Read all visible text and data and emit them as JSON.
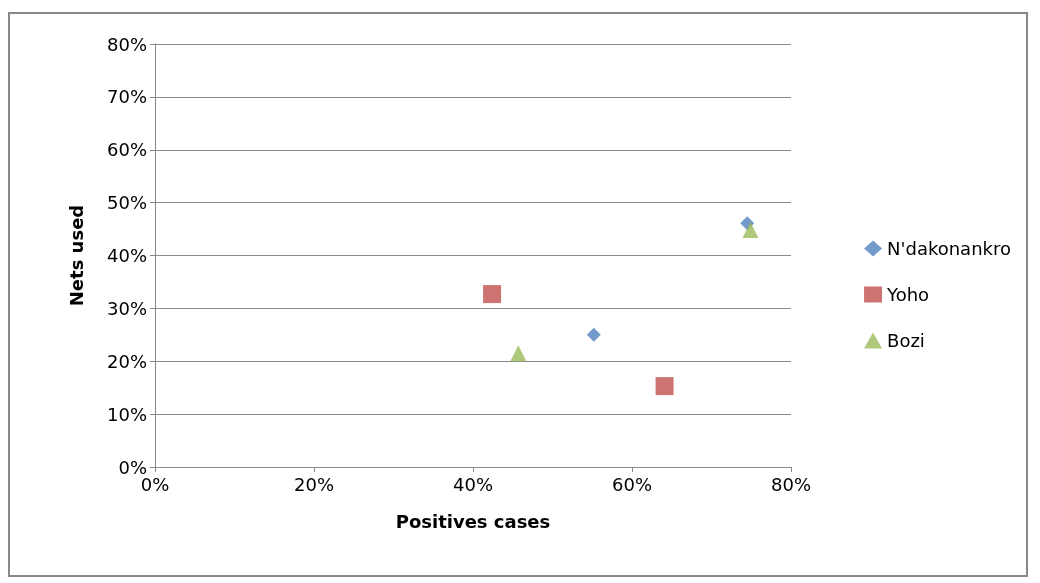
{
  "chart_data": {
    "type": "scatter",
    "xlabel": "Positives cases",
    "ylabel": "Nets used",
    "xlim": [
      0,
      80
    ],
    "ylim": [
      0,
      80
    ],
    "xticks": [
      {
        "value": 0,
        "label": "0%"
      },
      {
        "value": 20,
        "label": "20%"
      },
      {
        "value": 40,
        "label": "40%"
      },
      {
        "value": 60,
        "label": "60%"
      },
      {
        "value": 80,
        "label": "80%"
      }
    ],
    "yticks": [
      {
        "value": 0,
        "label": "0%"
      },
      {
        "value": 10,
        "label": "10%"
      },
      {
        "value": 20,
        "label": "20%"
      },
      {
        "value": 30,
        "label": "30%"
      },
      {
        "value": 40,
        "label": "40%"
      },
      {
        "value": 50,
        "label": "50%"
      },
      {
        "value": 60,
        "label": "60%"
      },
      {
        "value": 70,
        "label": "70%"
      },
      {
        "value": 80,
        "label": "80%"
      }
    ],
    "grid": "y",
    "legend": "right",
    "series": [
      {
        "name": "N'dakonankro",
        "color": "#4f81bd",
        "marker": "diamond",
        "x": [
          74.5,
          55.2
        ],
        "values": [
          46.1,
          25.0
        ]
      },
      {
        "name": "Yoho",
        "color": "#c0504d",
        "marker": "square",
        "x": [
          42.4,
          64.1
        ],
        "values": [
          32.7,
          15.3
        ]
      },
      {
        "name": "Bozi",
        "color": "#9bbb59",
        "marker": "triangle",
        "x": [
          45.7,
          74.9
        ],
        "values": [
          21.5,
          44.8
        ]
      }
    ]
  }
}
